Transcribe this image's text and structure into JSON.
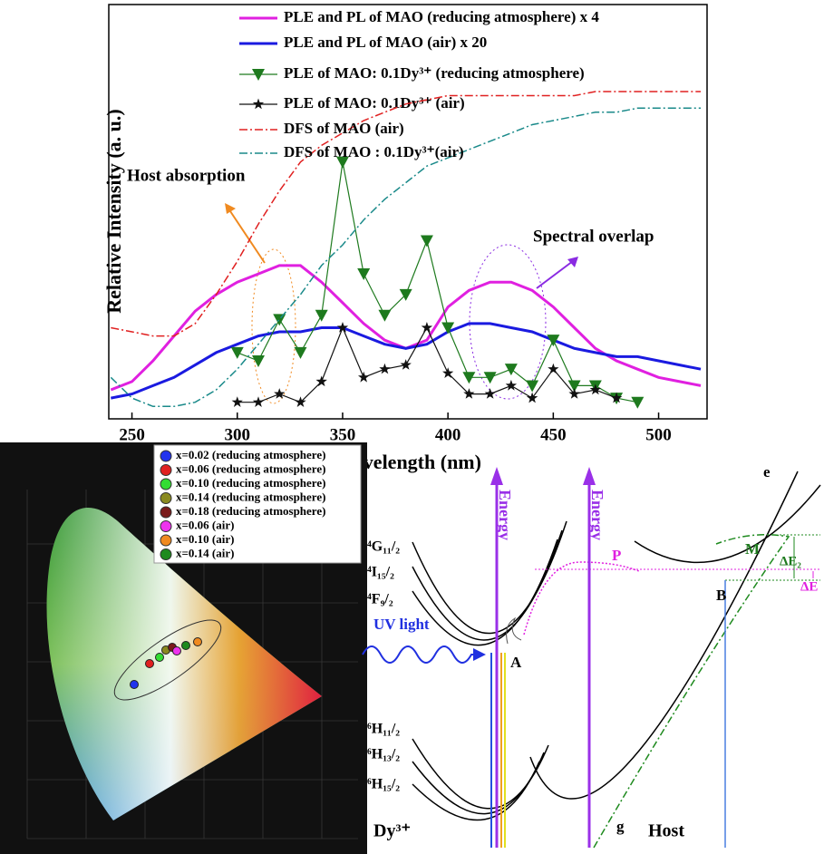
{
  "chart_data": [
    {
      "type": "line",
      "x_label": "Wavelength (nm)",
      "y_label": "Relative Intensity (a. u.)",
      "xlim": [
        239,
        523
      ],
      "xticks": [
        250,
        300,
        350,
        400,
        450,
        500
      ],
      "ylim": [
        0,
        100
      ],
      "x": [
        240,
        250,
        260,
        270,
        280,
        290,
        300,
        310,
        320,
        330,
        340,
        350,
        360,
        370,
        380,
        390,
        400,
        410,
        420,
        430,
        440,
        450,
        460,
        470,
        480,
        490,
        500,
        510,
        520
      ],
      "series": [
        {
          "name": "PLE and PL of MAO (reducing atmosphere) x 4",
          "color": "#e020e0",
          "values": [
            7,
            9,
            14,
            20,
            26,
            30,
            33,
            35,
            37,
            37,
            33,
            28,
            23,
            19,
            17,
            19,
            27,
            31,
            33,
            33,
            31,
            27,
            22,
            17,
            14,
            12,
            10,
            9,
            8
          ]
        },
        {
          "name": "PLE and PL of MAO (air) x 20",
          "color": "#1a1ae0",
          "values": [
            5,
            6,
            8,
            10,
            13,
            16,
            18,
            20,
            21,
            21,
            22,
            22,
            20,
            18,
            17,
            18,
            21,
            23,
            23,
            22,
            21,
            19,
            17,
            16,
            15,
            15,
            14,
            13,
            12
          ]
        },
        {
          "name": "PLE of MAO: 0.1Dy³⁺ (reducing atmosphere)",
          "color": "#1e7a1e",
          "marker": "triangle-down",
          "values": [
            null,
            null,
            null,
            null,
            null,
            null,
            16,
            14,
            24,
            16,
            25,
            62,
            35,
            25,
            30,
            43,
            22,
            10,
            10,
            12,
            8,
            19,
            8,
            8,
            5,
            4,
            null,
            null,
            null
          ]
        },
        {
          "name": "PLE of MAO: 0.1Dy³⁺ (air)",
          "color": "#111111",
          "marker": "star",
          "values": [
            null,
            null,
            null,
            null,
            null,
            null,
            4,
            4,
            6,
            4,
            9,
            22,
            10,
            12,
            13,
            22,
            11,
            6,
            6,
            8,
            5,
            12,
            6,
            7,
            5,
            null,
            null,
            null,
            null
          ]
        },
        {
          "name": "DFS of MAO (air)",
          "color": "#e02020",
          "dash": true,
          "values": [
            22,
            21,
            20,
            20,
            23,
            30,
            38,
            47,
            55,
            62,
            66,
            69,
            72,
            74,
            76,
            77,
            78,
            78,
            78,
            78,
            78,
            78,
            78,
            79,
            79,
            79,
            79,
            79,
            79
          ]
        },
        {
          "name": "DFS of MAO : 0.1Dy³⁺(air)",
          "color": "#1a8a8a",
          "dash": true,
          "values": [
            10,
            5,
            3,
            3,
            4,
            7,
            12,
            18,
            24,
            30,
            37,
            42,
            48,
            53,
            57,
            61,
            63,
            65,
            67,
            69,
            71,
            72,
            73,
            74,
            74,
            75,
            75,
            75,
            75
          ]
        }
      ],
      "annotations": [
        "Host absorption",
        "Spectral overlap"
      ]
    }
  ],
  "cie": {
    "legend": [
      {
        "label": "x=0.02 (reducing atmosphere)",
        "color": "#2233ee"
      },
      {
        "label": "x=0.06 (reducing atmosphere)",
        "color": "#e02020"
      },
      {
        "label": "x=0.10 (reducing atmosphere)",
        "color": "#33dd33"
      },
      {
        "label": "x=0.14 (reducing atmosphere)",
        "color": "#8a8a20"
      },
      {
        "label": "x=0.18 (reducing atmosphere)",
        "color": "#7a1a1a"
      },
      {
        "label": "x=0.06 (air)",
        "color": "#ee33ee"
      },
      {
        "label": "x=0.10 (air)",
        "color": "#f08a20"
      },
      {
        "label": "x=0.14 (air)",
        "color": "#1e8a1e"
      }
    ]
  },
  "diagram": {
    "levels_upper": [
      "⁴G₁₁/₂",
      "⁴I₁₅/₂",
      "⁴F₉/₂"
    ],
    "levels_lower": [
      "⁶H₁₁/₂",
      "⁶H₁₃/₂",
      "⁶H₁₅/₂"
    ],
    "energy": [
      "Energy",
      "Energy"
    ],
    "uv": "UV light",
    "ion": "Dy³⁺",
    "host": "Host",
    "points": [
      "A",
      "B",
      "P",
      "M",
      "e",
      "g"
    ],
    "delta_e2": "ΔE₂",
    "delta_e": "ΔE"
  }
}
